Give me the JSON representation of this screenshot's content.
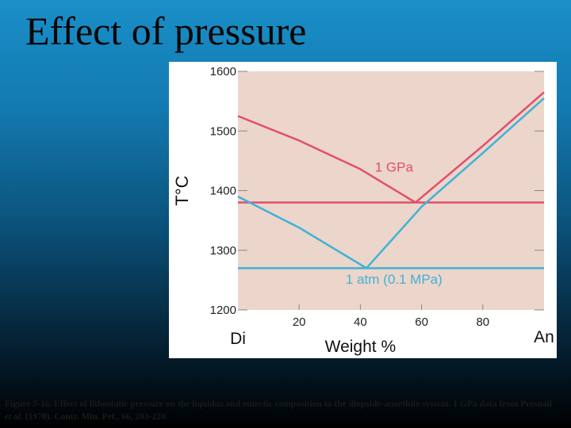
{
  "slide": {
    "title": "Effect of pressure",
    "caption_part1": "Figure 7-16. Effect of lithostatic pressure on the liquidus and eutectic composition in the diopside-anorthite system. 1 GPa data from Presnall ",
    "caption_italic": "et al.",
    "caption_part2": " (1978). Contr. Min. Pet., 66, 203-220."
  },
  "chart_data": {
    "type": "line",
    "title": "",
    "xlabel": "Weight %",
    "ylabel": "T°C",
    "x_end_labels": [
      "Di",
      "An"
    ],
    "xlim": [
      0,
      100
    ],
    "ylim": [
      1200,
      1600
    ],
    "xticks": [
      20,
      40,
      60,
      80
    ],
    "yticks": [
      1200,
      1300,
      1400,
      1500,
      1600
    ],
    "grid": false,
    "background": "#ecd5cb",
    "series": [
      {
        "name": "1 GPa",
        "label": "1 GPa",
        "color": "#e0506b",
        "liquidus": [
          [
            0,
            1525
          ],
          [
            20,
            1484
          ],
          [
            40,
            1436
          ],
          [
            58,
            1380
          ],
          [
            80,
            1475
          ],
          [
            100,
            1565
          ]
        ],
        "eutectic_T": 1380
      },
      {
        "name": "1 atm (0.1 MPa)",
        "label": "1 atm (0.1 MPa)",
        "color": "#3fb2d6",
        "liquidus": [
          [
            0,
            1390
          ],
          [
            20,
            1338
          ],
          [
            42,
            1270
          ],
          [
            60,
            1373
          ],
          [
            80,
            1463
          ],
          [
            100,
            1555
          ]
        ],
        "eutectic_T": 1270
      }
    ]
  }
}
